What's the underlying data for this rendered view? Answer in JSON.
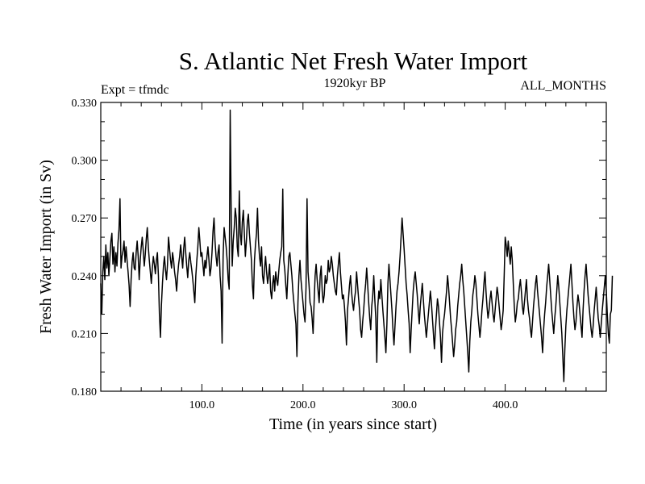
{
  "chart_data": {
    "type": "line",
    "title": "S. Atlantic Net Fresh Water Import",
    "subtitle": "1920kyr BP",
    "left_label": "Expt = tfmdc",
    "right_label": "ALL_MONTHS",
    "xlabel": "Time (in years since start)",
    "ylabel": "Fresh Water Import (in Sv)",
    "xlim": [
      0,
      500
    ],
    "ylim": [
      0.18,
      0.33
    ],
    "x_ticks": [
      100,
      200,
      300,
      400
    ],
    "x_tick_labels": [
      "100.0",
      "200.0",
      "300.0",
      "400.0"
    ],
    "y_ticks": [
      0.18,
      0.21,
      0.24,
      0.27,
      0.3,
      0.33
    ],
    "y_tick_labels": [
      "0.180",
      "0.210",
      "0.240",
      "0.270",
      "0.300",
      "0.330"
    ],
    "series": [
      {
        "name": "Net Fresh Water Import",
        "x_start": 0,
        "x_step": 1,
        "values": [
          0.236,
          0.22,
          0.242,
          0.25,
          0.238,
          0.256,
          0.244,
          0.252,
          0.24,
          0.249,
          0.258,
          0.262,
          0.246,
          0.255,
          0.242,
          0.252,
          0.245,
          0.257,
          0.264,
          0.28,
          0.244,
          0.25,
          0.253,
          0.258,
          0.247,
          0.255,
          0.248,
          0.242,
          0.235,
          0.224,
          0.238,
          0.247,
          0.252,
          0.244,
          0.243,
          0.252,
          0.258,
          0.25,
          0.238,
          0.248,
          0.255,
          0.26,
          0.253,
          0.245,
          0.251,
          0.259,
          0.265,
          0.255,
          0.248,
          0.242,
          0.236,
          0.244,
          0.25,
          0.246,
          0.241,
          0.248,
          0.252,
          0.24,
          0.22,
          0.208,
          0.225,
          0.236,
          0.245,
          0.25,
          0.243,
          0.238,
          0.246,
          0.26,
          0.254,
          0.248,
          0.244,
          0.252,
          0.248,
          0.242,
          0.238,
          0.232,
          0.24,
          0.246,
          0.25,
          0.256,
          0.25,
          0.244,
          0.254,
          0.26,
          0.252,
          0.245,
          0.239,
          0.248,
          0.252,
          0.247,
          0.243,
          0.238,
          0.232,
          0.226,
          0.24,
          0.248,
          0.255,
          0.265,
          0.258,
          0.25,
          0.252,
          0.246,
          0.24,
          0.248,
          0.244,
          0.25,
          0.255,
          0.248,
          0.24,
          0.244,
          0.252,
          0.263,
          0.27,
          0.258,
          0.25,
          0.245,
          0.252,
          0.256,
          0.24,
          0.232,
          0.205,
          0.25,
          0.265,
          0.26,
          0.255,
          0.248,
          0.238,
          0.233,
          0.326,
          0.272,
          0.245,
          0.258,
          0.265,
          0.275,
          0.27,
          0.255,
          0.25,
          0.284,
          0.262,
          0.256,
          0.268,
          0.274,
          0.262,
          0.25,
          0.258,
          0.268,
          0.272,
          0.262,
          0.255,
          0.248,
          0.235,
          0.228,
          0.248,
          0.256,
          0.262,
          0.275,
          0.258,
          0.25,
          0.245,
          0.255,
          0.24,
          0.236,
          0.244,
          0.25,
          0.242,
          0.236,
          0.24,
          0.246,
          0.232,
          0.228,
          0.236,
          0.24,
          0.232,
          0.242,
          0.238,
          0.235,
          0.242,
          0.248,
          0.252,
          0.255,
          0.285,
          0.248,
          0.243,
          0.235,
          0.228,
          0.24,
          0.25,
          0.252,
          0.246,
          0.24,
          0.232,
          0.226,
          0.22,
          0.215,
          0.198,
          0.226,
          0.24,
          0.248,
          0.238,
          0.232,
          0.226,
          0.22,
          0.216,
          0.234,
          0.28,
          0.242,
          0.235,
          0.226,
          0.224,
          0.218,
          0.21,
          0.226,
          0.24,
          0.246,
          0.238,
          0.232,
          0.226,
          0.24,
          0.245,
          0.232,
          0.226,
          0.23,
          0.24,
          0.236,
          0.238,
          0.248,
          0.242,
          0.244,
          0.25,
          0.246,
          0.24,
          0.236,
          0.232,
          0.23,
          0.24,
          0.246,
          0.252,
          0.242,
          0.235,
          0.228,
          0.23,
          0.224,
          0.216,
          0.204,
          0.222,
          0.228,
          0.235,
          0.24,
          0.232,
          0.226,
          0.222,
          0.228,
          0.232,
          0.242,
          0.235,
          0.228,
          0.222,
          0.212,
          0.208,
          0.216,
          0.222,
          0.23,
          0.236,
          0.244,
          0.235,
          0.226,
          0.218,
          0.212,
          0.224,
          0.23,
          0.24,
          0.228,
          0.218,
          0.195,
          0.224,
          0.232,
          0.228,
          0.238,
          0.23,
          0.222,
          0.215,
          0.208,
          0.2,
          0.215,
          0.236,
          0.246,
          0.238,
          0.23,
          0.222,
          0.212,
          0.204,
          0.214,
          0.224,
          0.232,
          0.236,
          0.242,
          0.25,
          0.26,
          0.27,
          0.262,
          0.254,
          0.245,
          0.236,
          0.23,
          0.222,
          0.215,
          0.2,
          0.212,
          0.222,
          0.232,
          0.238,
          0.242,
          0.236,
          0.23,
          0.222,
          0.215,
          0.224,
          0.23,
          0.236,
          0.228,
          0.22,
          0.214,
          0.208,
          0.214,
          0.22,
          0.226,
          0.232,
          0.226,
          0.218,
          0.21,
          0.202,
          0.212,
          0.22,
          0.228,
          0.224,
          0.216,
          0.208,
          0.195,
          0.21,
          0.216,
          0.22,
          0.226,
          0.232,
          0.24,
          0.234,
          0.226,
          0.218,
          0.212,
          0.205,
          0.198,
          0.204,
          0.212,
          0.216,
          0.224,
          0.23,
          0.236,
          0.24,
          0.246,
          0.238,
          0.232,
          0.224,
          0.216,
          0.208,
          0.2,
          0.19,
          0.206,
          0.216,
          0.222,
          0.23,
          0.234,
          0.24,
          0.236,
          0.228,
          0.22,
          0.214,
          0.208,
          0.214,
          0.222,
          0.228,
          0.236,
          0.242,
          0.232,
          0.224,
          0.218,
          0.222,
          0.228,
          0.232,
          0.226,
          0.22,
          0.216,
          0.222,
          0.228,
          0.234,
          0.23,
          0.224,
          0.218,
          0.212,
          0.216,
          0.222,
          0.24,
          0.26,
          0.256,
          0.25,
          0.258,
          0.252,
          0.246,
          0.255,
          0.248,
          0.236,
          0.224,
          0.216,
          0.22,
          0.226,
          0.228,
          0.234,
          0.238,
          0.232,
          0.224,
          0.22,
          0.226,
          0.232,
          0.238,
          0.228,
          0.222,
          0.218,
          0.212,
          0.208,
          0.216,
          0.224,
          0.23,
          0.236,
          0.24,
          0.232,
          0.226,
          0.22,
          0.214,
          0.208,
          0.2,
          0.212,
          0.22,
          0.226,
          0.234,
          0.24,
          0.246,
          0.238,
          0.23,
          0.222,
          0.216,
          0.21,
          0.218,
          0.224,
          0.232,
          0.24,
          0.234,
          0.226,
          0.218,
          0.21,
          0.198,
          0.185,
          0.202,
          0.214,
          0.222,
          0.228,
          0.234,
          0.24,
          0.246,
          0.236,
          0.226,
          0.218,
          0.212,
          0.216,
          0.224,
          0.23,
          0.226,
          0.22,
          0.214,
          0.208,
          0.222,
          0.232,
          0.24,
          0.246,
          0.238,
          0.23,
          0.224,
          0.218,
          0.212,
          0.208,
          0.214,
          0.222,
          0.228,
          0.234,
          0.226,
          0.218,
          0.214,
          0.208,
          0.215,
          0.222,
          0.228,
          0.234,
          0.24,
          0.232,
          0.22,
          0.21,
          0.205,
          0.22,
          0.222,
          0.24
        ]
      }
    ]
  }
}
